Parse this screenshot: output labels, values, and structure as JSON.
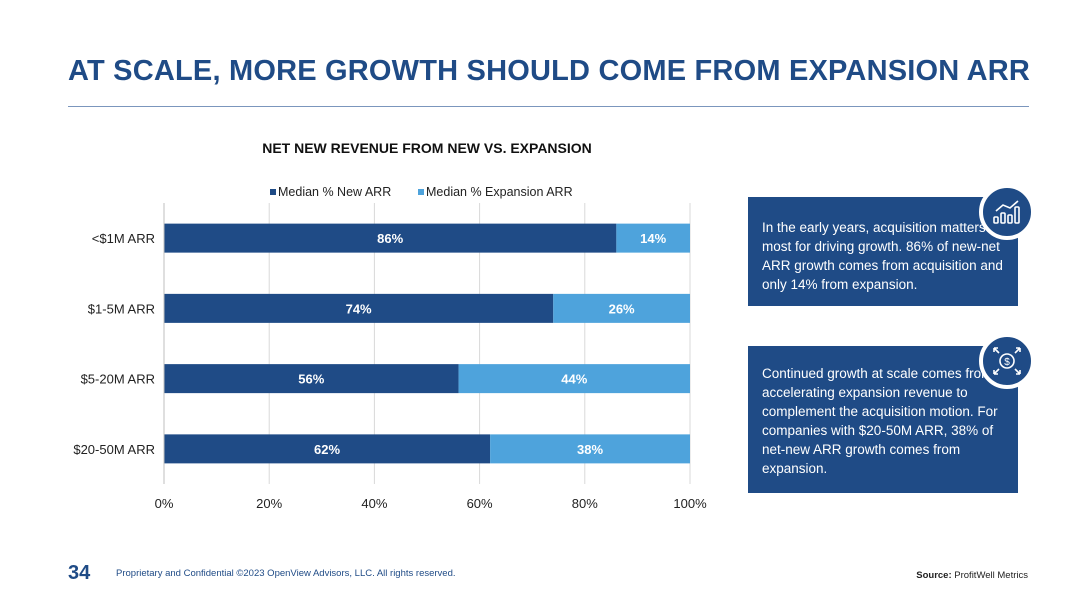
{
  "title": "AT SCALE, MORE GROWTH SHOULD COME FROM EXPANSION ARR",
  "chart_data": {
    "type": "bar",
    "orientation": "horizontal",
    "stacked": true,
    "title": "NET NEW REVENUE FROM NEW VS. EXPANSION",
    "categories": [
      "<$1M ARR",
      "$1-5M ARR",
      "$5-20M ARR",
      "$20-50M ARR"
    ],
    "series": [
      {
        "name": "Median % New ARR",
        "values": [
          86,
          74,
          56,
          62
        ],
        "labels": [
          "86%",
          "74%",
          "56%",
          "62%"
        ],
        "color": "#1f4b86"
      },
      {
        "name": "Median % Expansion ARR",
        "values": [
          14,
          26,
          44,
          38
        ],
        "labels": [
          "14%",
          "26%",
          "44%",
          "38%"
        ],
        "color": "#4ea3dc"
      }
    ],
    "xlim": [
      0,
      100
    ],
    "xticks": [
      "0%",
      "20%",
      "40%",
      "60%",
      "80%",
      "100%"
    ],
    "grid": true,
    "legend": "top"
  },
  "callouts": [
    {
      "text": "In the early years, acquisition matters most for driving growth. 86% of new-net ARR growth comes from acquisition and only 14% from expansion.",
      "icon": "chart-growth-icon"
    },
    {
      "text": "Continued growth at scale comes from accelerating expansion revenue to complement the acquisition motion. For companies with $20-50M ARR, 38% of net-new ARR growth comes from expansion.",
      "icon": "dollar-expand-icon"
    }
  ],
  "footer": {
    "page_number": "34",
    "legal": "Proprietary and Confidential ©2023 OpenView Advisors, LLC. All rights reserved.",
    "source_label": "Source:",
    "source_value": "ProfitWell Metrics"
  }
}
